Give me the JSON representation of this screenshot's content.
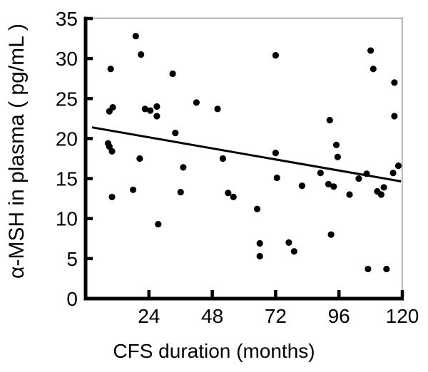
{
  "chart_data": {
    "type": "scatter",
    "title": "",
    "xlabel": "CFS duration (months)",
    "ylabel": "α-MSH in plasma ( pg/mL )",
    "xlim": [
      0,
      120
    ],
    "ylim": [
      0,
      35
    ],
    "xticks": [
      24,
      48,
      72,
      96,
      120
    ],
    "yticks": [
      0,
      5,
      10,
      15,
      20,
      25,
      30,
      35
    ],
    "grid": false,
    "legend": "none",
    "points": [
      [
        8.5,
        19.4
      ],
      [
        9,
        19.0
      ],
      [
        9,
        23.4
      ],
      [
        9.5,
        28.7
      ],
      [
        10,
        18.4
      ],
      [
        10,
        12.7
      ],
      [
        10.3,
        23.9
      ],
      [
        18,
        13.6
      ],
      [
        19,
        32.8
      ],
      [
        20.5,
        17.5
      ],
      [
        21,
        30.5
      ],
      [
        22.5,
        23.7
      ],
      [
        24.5,
        23.5
      ],
      [
        27,
        24.0
      ],
      [
        27,
        22.8
      ],
      [
        27.5,
        9.3
      ],
      [
        33,
        28.1
      ],
      [
        34,
        20.7
      ],
      [
        36,
        13.3
      ],
      [
        37,
        16.4
      ],
      [
        42,
        24.5
      ],
      [
        50,
        23.7
      ],
      [
        52,
        17.5
      ],
      [
        54,
        13.2
      ],
      [
        56,
        12.7
      ],
      [
        65,
        11.2
      ],
      [
        66,
        6.9
      ],
      [
        66,
        5.3
      ],
      [
        72,
        30.4
      ],
      [
        72,
        18.2
      ],
      [
        72.5,
        15.1
      ],
      [
        77,
        7.0
      ],
      [
        79,
        5.9
      ],
      [
        82,
        14.1
      ],
      [
        89,
        15.7
      ],
      [
        92,
        14.3
      ],
      [
        92.5,
        22.3
      ],
      [
        93,
        8.0
      ],
      [
        94,
        14.0
      ],
      [
        95,
        19.2
      ],
      [
        95.5,
        17.7
      ],
      [
        100,
        13.0
      ],
      [
        103.5,
        15.0
      ],
      [
        106.5,
        15.6
      ],
      [
        107,
        3.7
      ],
      [
        108,
        31.0
      ],
      [
        109,
        28.7
      ],
      [
        110.5,
        13.4
      ],
      [
        112,
        13.0
      ],
      [
        113,
        13.9
      ],
      [
        114,
        3.7
      ],
      [
        116.5,
        15.7
      ],
      [
        117,
        27.0
      ],
      [
        117,
        22.8
      ],
      [
        118.5,
        16.6
      ]
    ],
    "trendline": {
      "x": [
        2.4,
        119.5
      ],
      "y": [
        21.4,
        14.65
      ]
    },
    "colors": {
      "dot": "#000000",
      "line": "#000000",
      "axis": "#000000",
      "text": "#000000",
      "frame": "#a9a9a9"
    }
  }
}
